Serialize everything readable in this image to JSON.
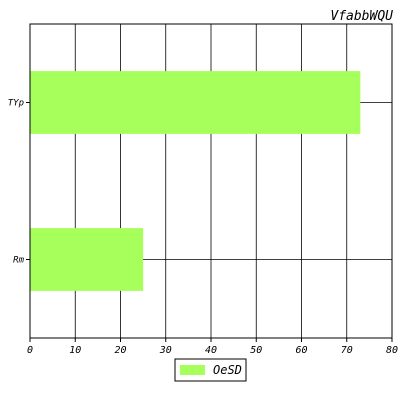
{
  "chart_data": {
    "type": "bar",
    "orientation": "horizontal",
    "title": "VfabbWQU",
    "xlabel": "",
    "ylabel": "",
    "categories": [
      "Rm",
      "TYp"
    ],
    "series": [
      {
        "name": "OeSD",
        "values": [
          25,
          73
        ],
        "color": "#a6ff5a"
      }
    ],
    "xlim": [
      0,
      80
    ],
    "xticks": [
      0,
      10,
      20,
      30,
      40,
      50,
      60,
      70,
      80
    ],
    "grid": true,
    "legend_position": "bottom-center"
  }
}
